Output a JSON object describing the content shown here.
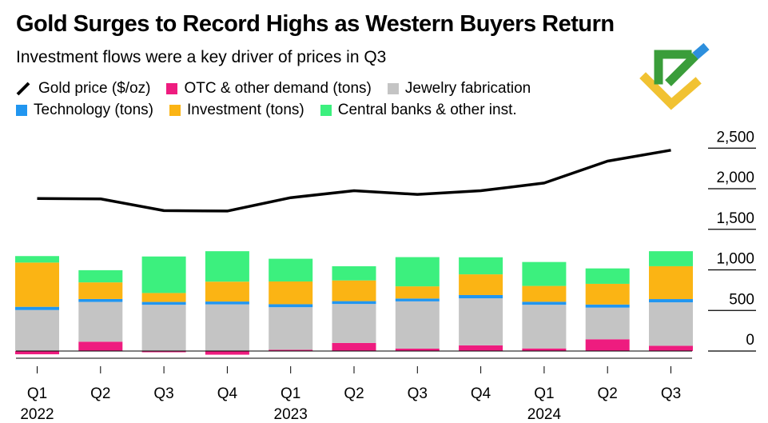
{
  "header": {
    "title": "Gold Surges to Record Highs as Western Buyers Return",
    "subtitle": "Investment flows were a key driver of prices in Q3"
  },
  "legend": [
    {
      "key": "gold",
      "label": "Gold price ($/oz)",
      "color": "#000000",
      "kind": "line"
    },
    {
      "key": "otc",
      "label": "OTC & other demand (tons)",
      "color": "#ee1c7f",
      "kind": "box"
    },
    {
      "key": "jewelry",
      "label": "Jewelry fabrication",
      "color": "#c4c4c4",
      "kind": "box"
    },
    {
      "key": "technology",
      "label": "Technology (tons)",
      "color": "#2196f0",
      "kind": "box"
    },
    {
      "key": "investment",
      "label": "Investment (tons)",
      "color": "#fbb414",
      "kind": "box"
    },
    {
      "key": "central",
      "label": "Central banks & other inst.",
      "color": "#3cf07e",
      "kind": "box"
    }
  ],
  "logo": {
    "icon": "brand-logo-icon",
    "colors": [
      "#3a9d3a",
      "#f1c232",
      "#2d8fdd"
    ]
  },
  "chart_data": {
    "type": "bar",
    "stacked": true,
    "categories": [
      "Q1 2022",
      "Q2 2022",
      "Q3 2022",
      "Q4 2022",
      "Q1 2023",
      "Q2 2023",
      "Q3 2023",
      "Q4 2023",
      "Q1 2024",
      "Q2 2024",
      "Q3 2024"
    ],
    "x_tick_labels": [
      "Q1",
      "Q2",
      "Q3",
      "Q4",
      "Q1",
      "Q2",
      "Q3",
      "Q4",
      "Q1",
      "Q2",
      "Q3"
    ],
    "x_year_labels": [
      {
        "index": 0,
        "label": "2022"
      },
      {
        "index": 4,
        "label": "2023"
      },
      {
        "index": 8,
        "label": "2024"
      }
    ],
    "series": [
      {
        "name": "OTC & other demand (tons)",
        "key": "otc",
        "color": "#ee1c7f",
        "values": [
          -40,
          115,
          -15,
          -45,
          15,
          100,
          30,
          70,
          32,
          145,
          65
        ]
      },
      {
        "name": "Jewelry fabrication",
        "key": "jewelry",
        "color": "#c4c4c4",
        "values": [
          505,
          490,
          570,
          575,
          525,
          480,
          582,
          580,
          538,
          390,
          535
        ]
      },
      {
        "name": "Technology (tons)",
        "key": "technology",
        "color": "#2196f0",
        "values": [
          40,
          36,
          35,
          35,
          37,
          35,
          35,
          40,
          37,
          38,
          40
        ]
      },
      {
        "name": "Investment (tons)",
        "key": "investment",
        "color": "#fbb414",
        "values": [
          545,
          205,
          110,
          245,
          280,
          255,
          150,
          255,
          195,
          255,
          405
        ]
      },
      {
        "name": "Central banks & other inst.",
        "key": "central",
        "color": "#3cf07e",
        "values": [
          80,
          150,
          450,
          375,
          280,
          175,
          360,
          210,
          295,
          190,
          185
        ]
      }
    ],
    "line_series": {
      "name": "Gold price ($/oz)",
      "key": "gold",
      "color": "#000000",
      "values": [
        1880,
        1875,
        1730,
        1725,
        1890,
        1975,
        1930,
        1975,
        2070,
        2340,
        2475
      ]
    },
    "y_ticks": [
      0,
      500,
      1000,
      1500,
      2000,
      2500
    ],
    "y_tick_labels": [
      "0",
      "500",
      "1,000",
      "1,500",
      "2,000",
      "2,500"
    ],
    "ylim": [
      -100,
      2700
    ],
    "grid": false,
    "legend_position": "top-left"
  }
}
